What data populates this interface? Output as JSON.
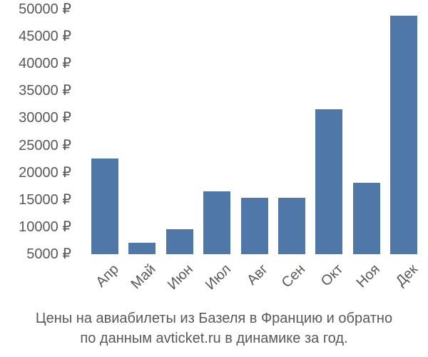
{
  "chart_data": {
    "type": "bar",
    "title": "Цены на авиабилеты из Базеля в Францию и обратно по данным avticket.ru в динамике за год.",
    "xlabel": "",
    "ylabel": "",
    "categories": [
      "Апр",
      "Май",
      "Июн",
      "Июл",
      "Авг",
      "Сен",
      "Окт",
      "Ноя",
      "Дек"
    ],
    "values": [
      22600,
      7100,
      9600,
      16500,
      15400,
      15400,
      31600,
      18100,
      48800
    ],
    "ylim": [
      5000,
      50000
    ],
    "yticks": [
      5000,
      10000,
      15000,
      20000,
      25000,
      30000,
      35000,
      40000,
      45000,
      50000
    ],
    "ytick_labels": [
      "5000 ₽",
      "10000 ₽",
      "15000 ₽",
      "20000 ₽",
      "25000 ₽",
      "30000 ₽",
      "35000 ₽",
      "40000 ₽",
      "45000 ₽",
      "50000 ₽"
    ],
    "grid": false,
    "legend": "none",
    "bar_color": "#4f77a8"
  },
  "caption": {
    "line1": "Цены на авиабилеты из Базеля в Францию и обратно",
    "line2": "по данным avticket.ru в динамике за год."
  }
}
